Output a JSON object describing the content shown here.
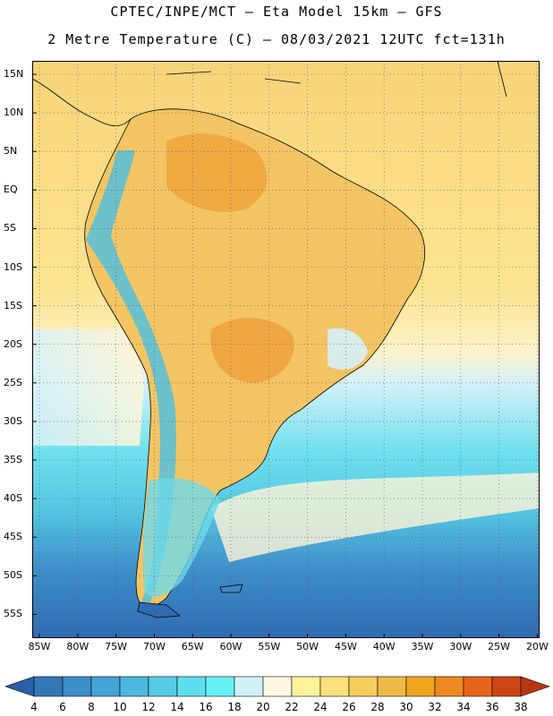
{
  "header": {
    "line1": "CPTEC/INPE/MCT –  Eta Model 15km – GFS",
    "line2": "2 Metre Temperature (C) – 08/03/2021 12UTC fct=131h"
  },
  "map": {
    "region": "South America",
    "variable": "2 Metre Temperature",
    "units": "C",
    "lat_ticks": [
      "15N",
      "10N",
      "5N",
      "EQ",
      "5S",
      "10S",
      "15S",
      "20S",
      "25S",
      "30S",
      "35S",
      "40S",
      "45S",
      "50S",
      "55S"
    ],
    "lon_ticks": [
      "85W",
      "80W",
      "75W",
      "70W",
      "65W",
      "60W",
      "55W",
      "50W",
      "45W",
      "40W",
      "35W",
      "30W",
      "25W",
      "20W"
    ]
  },
  "colorbar": {
    "labels": [
      "4",
      "6",
      "8",
      "10",
      "12",
      "14",
      "16",
      "18",
      "20",
      "22",
      "24",
      "26",
      "28",
      "30",
      "32",
      "34",
      "36",
      "38"
    ],
    "colors": [
      "#2a5fa8",
      "#3477b8",
      "#3d8ec8",
      "#45a3d6",
      "#4db8df",
      "#55cce6",
      "#5fdfee",
      "#66f2f5",
      "#d2f2fb",
      "#fff8e3",
      "#fff29a",
      "#fbe27c",
      "#f5ce5e",
      "#efba44",
      "#f0a520",
      "#ee8a1e",
      "#e6651a",
      "#cd4515",
      "#b73610"
    ]
  },
  "legend_labels_units": "C"
}
